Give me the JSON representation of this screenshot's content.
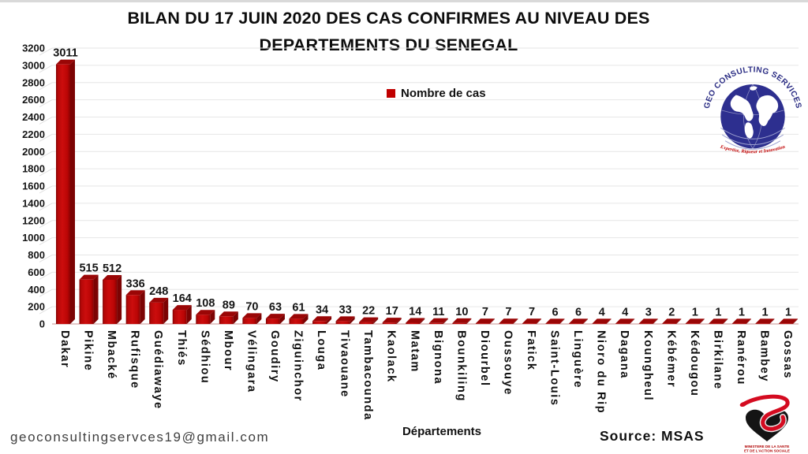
{
  "header": {
    "title_line1": "BILAN DU 17 JUIN 2020 DES CAS CONFIRMES AU NIVEAU DES",
    "title_line2": "DEPARTEMENTS DU SENEGAL"
  },
  "legend": {
    "label": "Nombre de cas"
  },
  "chart_data": {
    "type": "bar",
    "title": "BILAN DU 17 JUIN 2020 DES CAS CONFIRMES AU NIVEAU DES DEPARTEMENTS DU SENEGAL",
    "series_name": "Nombre de cas",
    "categories": [
      "Dakar",
      "Pikine",
      "Mbacké",
      "Rufisque",
      "Guédiawaye",
      "Thiés",
      "Sédhiou",
      "Mbour",
      "Vélingara",
      "Goudiry",
      "Ziguinchor",
      "Louga",
      "Tivaouane",
      "Tambacounda",
      "Kaolack",
      "Matam",
      "Bignona",
      "Bounkiling",
      "Diourbel",
      "Oussouye",
      "Fatick",
      "Saint-Louis",
      "Linguère",
      "Nioro du Rip",
      "Dagana",
      "Koungheul",
      "Kébémer",
      "Kédougou",
      "Birkilane",
      "Ranérou",
      "Bambey",
      "Gossas"
    ],
    "values": [
      3011,
      515,
      512,
      336,
      248,
      164,
      108,
      89,
      70,
      63,
      61,
      34,
      33,
      22,
      17,
      14,
      11,
      10,
      7,
      7,
      7,
      6,
      6,
      4,
      4,
      3,
      2,
      1,
      1,
      1,
      1,
      1
    ],
    "xlabel": "Départements",
    "ylabel": "",
    "ylim": [
      0,
      3200
    ],
    "ytick_step": 200,
    "bar_color": "#C00000",
    "grid": true,
    "legend_position": "top-center"
  },
  "footer": {
    "email": "geoconsultingservces19@gmail.com",
    "source": "Source: MSAS"
  },
  "logos": {
    "geo_consulting": {
      "arc_text": "GEO CONSULTING SERVICES",
      "tagline": "Expertise, Rigueur et Innovation"
    },
    "ministry": {
      "line1": "MINISTERE DE LA SANTE",
      "line2": "ET DE L'ACTION SOCIALE"
    }
  }
}
